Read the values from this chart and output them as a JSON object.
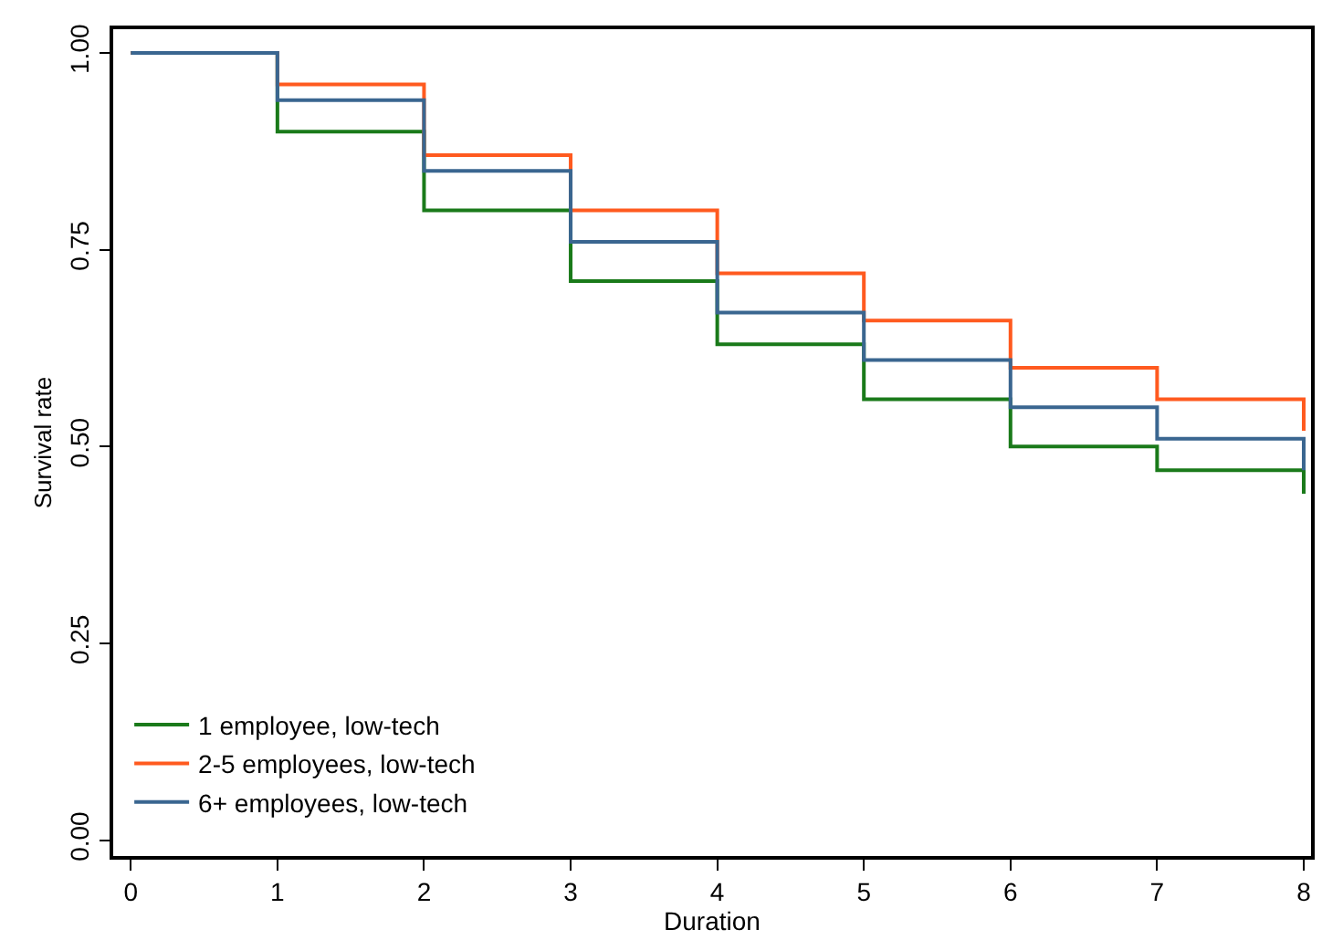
{
  "chart_data": {
    "type": "step",
    "xlabel": "Duration",
    "ylabel": "Survival rate",
    "x": [
      0,
      1,
      2,
      3,
      4,
      5,
      6,
      7,
      8
    ],
    "series": [
      {
        "name": "1 employee, low-tech",
        "color": "#1a7a1a",
        "values": [
          1.0,
          0.9,
          0.8,
          0.71,
          0.63,
          0.56,
          0.5,
          0.47,
          0.44
        ]
      },
      {
        "name": "2-5 employees, low-tech",
        "color": "#ff5a1f",
        "values": [
          1.0,
          0.96,
          0.87,
          0.8,
          0.72,
          0.66,
          0.6,
          0.56,
          0.52
        ]
      },
      {
        "name": "6+ employees, low-tech",
        "color": "#3a6690",
        "values": [
          1.0,
          0.94,
          0.85,
          0.76,
          0.67,
          0.61,
          0.55,
          0.51,
          0.47
        ]
      }
    ],
    "xlim": [
      -0.12,
      8.05
    ],
    "ylim": [
      -0.02,
      1.03
    ],
    "xticks": [
      0,
      1,
      2,
      3,
      4,
      5,
      6,
      7,
      8
    ],
    "yticks": [
      {
        "value": 0,
        "label": "0.00"
      },
      {
        "value": 0.25,
        "label": "0.25"
      },
      {
        "value": 0.5,
        "label": "0.50"
      },
      {
        "value": 0.75,
        "label": "0.75"
      },
      {
        "value": 1,
        "label": "1.00"
      }
    ],
    "legend": "bottom left",
    "line_style": "solid",
    "marker": "none"
  }
}
